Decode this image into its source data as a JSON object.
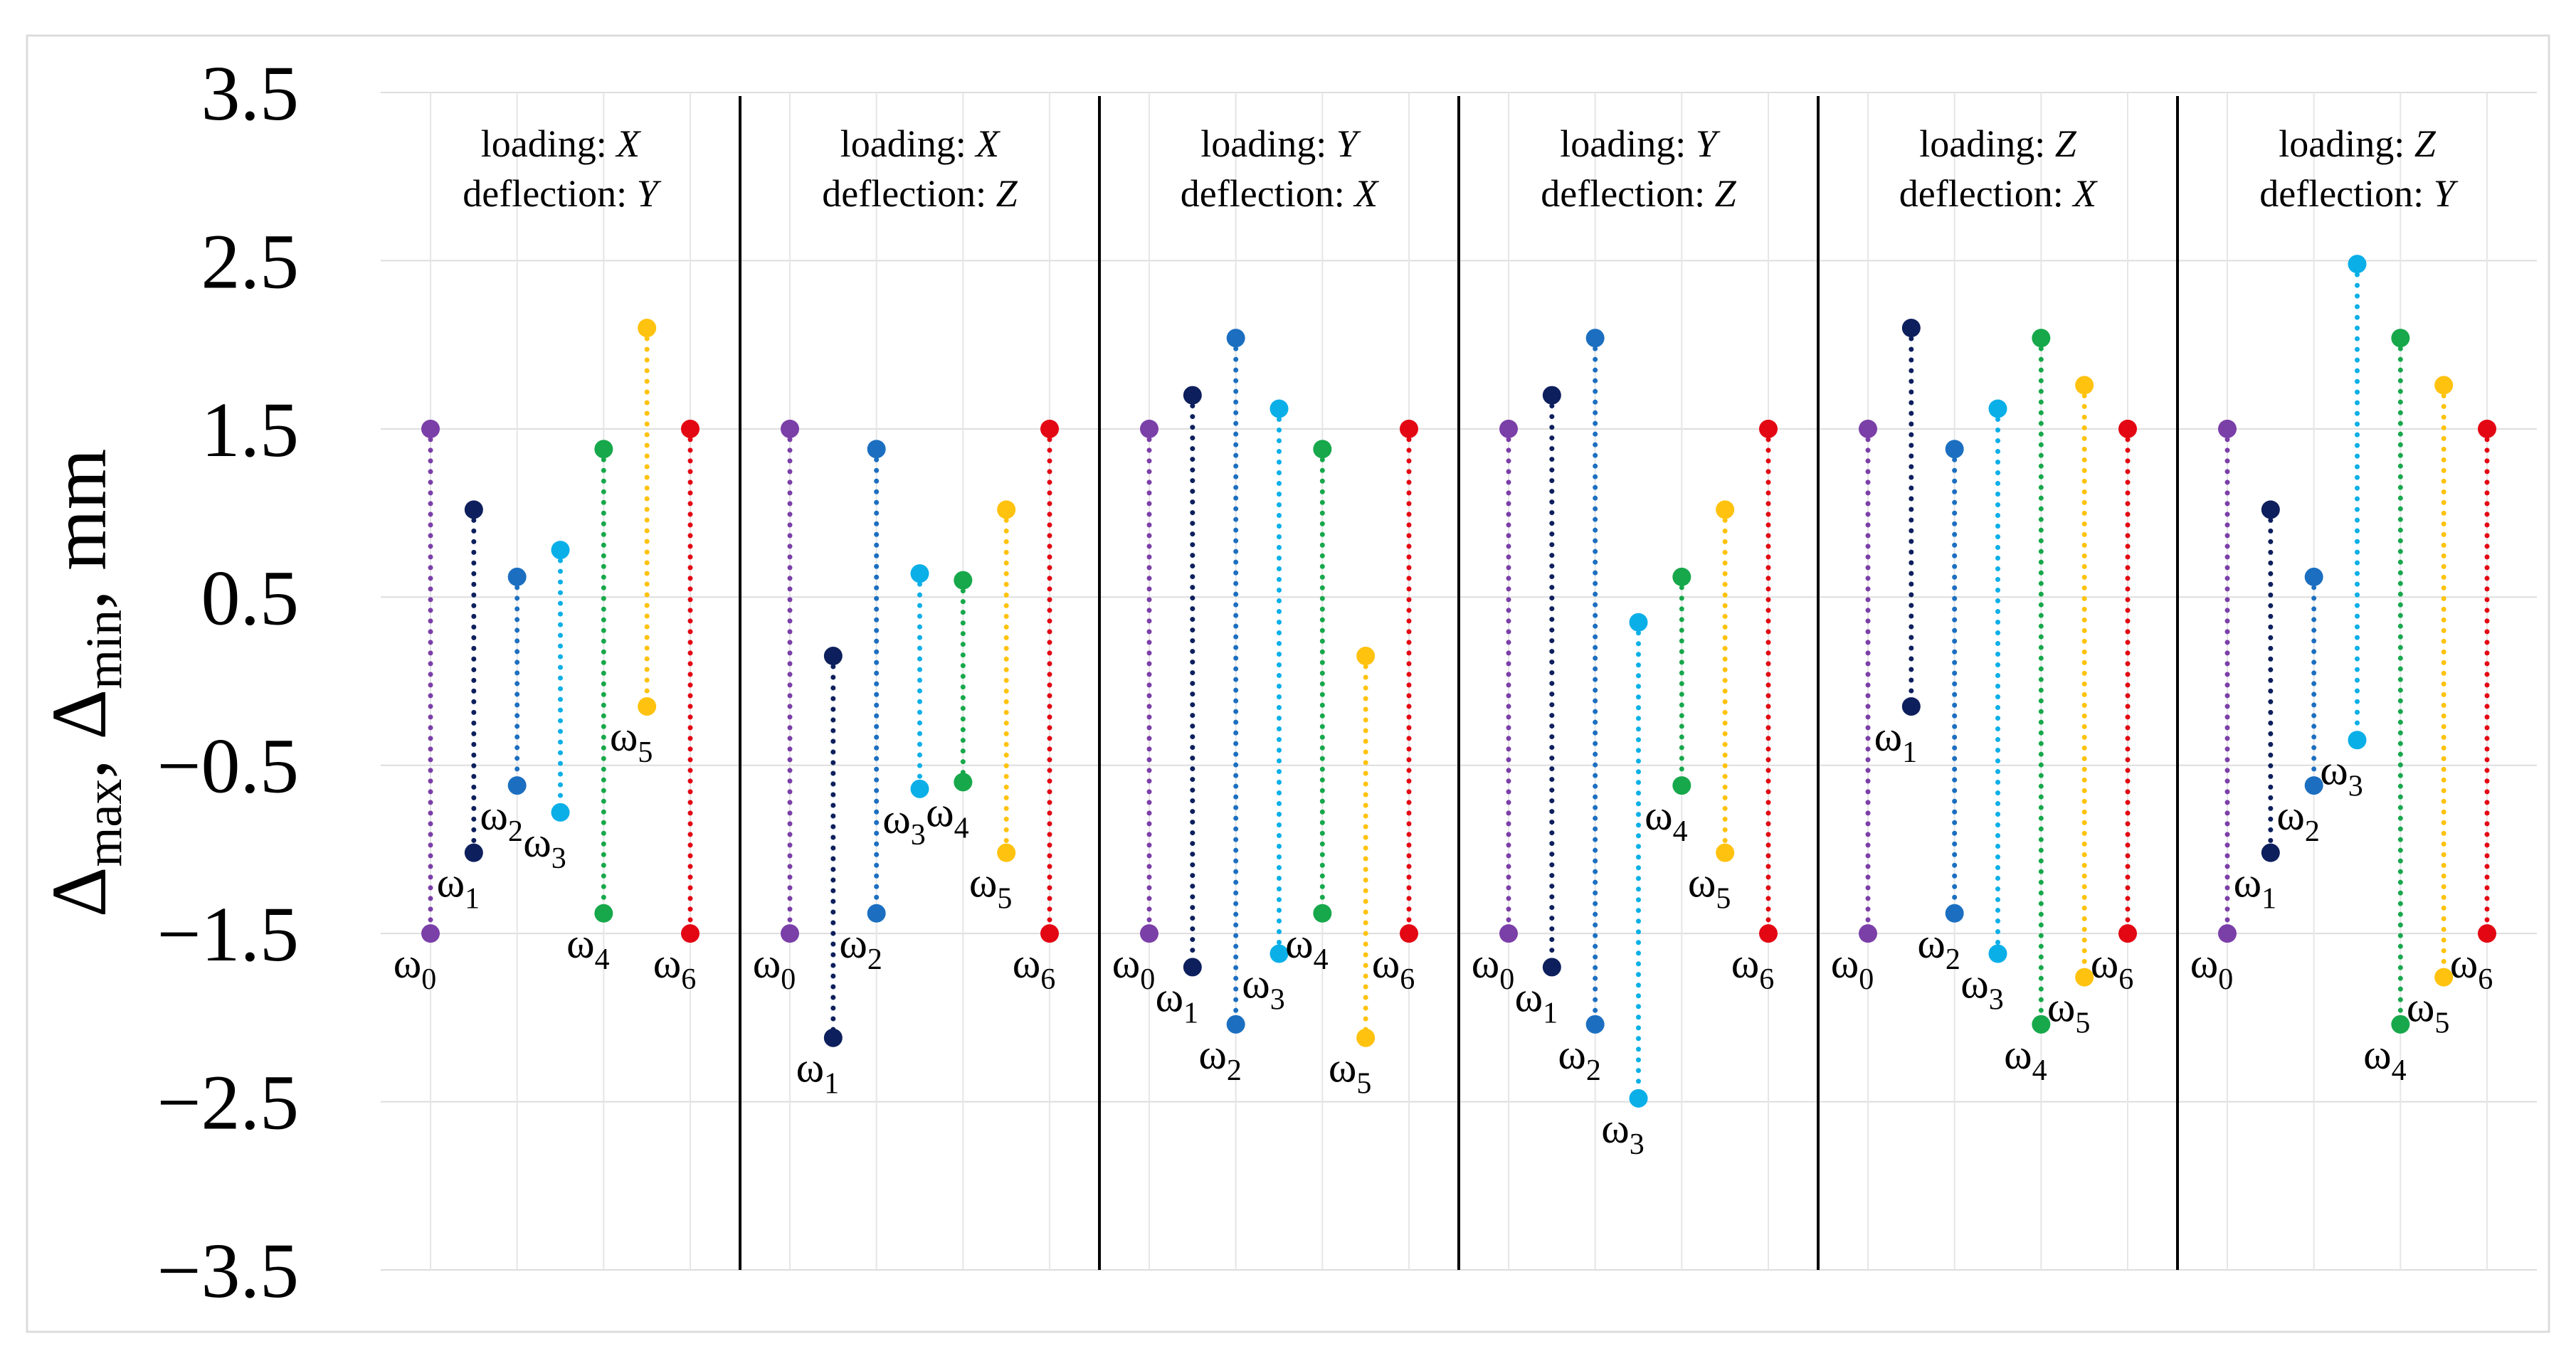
{
  "chart_data": {
    "type": "scatter",
    "description_of_marks": "min-max range per mode",
    "ylabel": {
      "base1": "Δ",
      "sub1": "max",
      "sep": ", ",
      "base2": "Δ",
      "sub2": "min",
      "unit": ", mm"
    },
    "ylim": [
      -3.5,
      3.5
    ],
    "yticks": [
      3.5,
      2.5,
      1.5,
      0.5,
      -0.5,
      -1.5,
      -2.5,
      -3.5
    ],
    "ytick_labels": [
      "3.5",
      "2.5",
      "1.5",
      "0.5",
      "−0.5",
      "−1.5",
      "−2.5",
      "−3.5"
    ],
    "grid": true,
    "series_colors": [
      "#7b3fa8",
      "#0d1f5c",
      "#1c6fc0",
      "#0aafe8",
      "#17a84b",
      "#ffc20e",
      "#e30613"
    ],
    "mode_symbol": "ω",
    "panels": [
      {
        "line1_prefix": "loading: ",
        "line1_axis": "X",
        "line2_prefix": "deflection: ",
        "line2_axis": "Y",
        "modes": [
          {
            "label": "0",
            "max": 1.5,
            "min": -1.5
          },
          {
            "label": "1",
            "max": 1.02,
            "min": -1.02
          },
          {
            "label": "2",
            "max": 0.62,
            "min": -0.62
          },
          {
            "label": "3",
            "max": 0.78,
            "min": -0.78
          },
          {
            "label": "4",
            "max": 1.38,
            "min": -1.38
          },
          {
            "label": "5",
            "max": 2.1,
            "min": -0.15
          },
          {
            "label": "6",
            "max": 1.5,
            "min": -1.5
          }
        ]
      },
      {
        "line1_prefix": "loading: ",
        "line1_axis": "X",
        "line2_prefix": "deflection: ",
        "line2_axis": "Z",
        "modes": [
          {
            "label": "0",
            "max": 1.5,
            "min": -1.5
          },
          {
            "label": "1",
            "max": 0.15,
            "min": -2.12
          },
          {
            "label": "2",
            "max": 1.38,
            "min": -1.38
          },
          {
            "label": "3",
            "max": 0.64,
            "min": -0.64
          },
          {
            "label": "4",
            "max": 0.6,
            "min": -0.6
          },
          {
            "label": "5",
            "max": 1.02,
            "min": -1.02
          },
          {
            "label": "6",
            "max": 1.5,
            "min": -1.5
          }
        ]
      },
      {
        "line1_prefix": "loading: ",
        "line1_axis": "Y",
        "line2_prefix": "deflection: ",
        "line2_axis": "X",
        "modes": [
          {
            "label": "0",
            "max": 1.5,
            "min": -1.5
          },
          {
            "label": "1",
            "max": 1.7,
            "min": -1.7
          },
          {
            "label": "2",
            "max": 2.04,
            "min": -2.04
          },
          {
            "label": "3",
            "max": 1.62,
            "min": -1.62
          },
          {
            "label": "4",
            "max": 1.38,
            "min": -1.38
          },
          {
            "label": "5",
            "max": 0.15,
            "min": -2.12
          },
          {
            "label": "6",
            "max": 1.5,
            "min": -1.5
          }
        ]
      },
      {
        "line1_prefix": "loading: ",
        "line1_axis": "Y",
        "line2_prefix": "deflection: ",
        "line2_axis": "Z",
        "modes": [
          {
            "label": "0",
            "max": 1.5,
            "min": -1.5
          },
          {
            "label": "1",
            "max": 1.7,
            "min": -1.7
          },
          {
            "label": "2",
            "max": 2.04,
            "min": -2.04
          },
          {
            "label": "3",
            "max": 0.35,
            "min": -2.48
          },
          {
            "label": "4",
            "max": 0.62,
            "min": -0.62
          },
          {
            "label": "5",
            "max": 1.02,
            "min": -1.02
          },
          {
            "label": "6",
            "max": 1.5,
            "min": -1.5
          }
        ]
      },
      {
        "line1_prefix": "loading: ",
        "line1_axis": "Z",
        "line2_prefix": "deflection: ",
        "line2_axis": "X",
        "modes": [
          {
            "label": "0",
            "max": 1.5,
            "min": -1.5
          },
          {
            "label": "1",
            "max": 2.1,
            "min": -0.15
          },
          {
            "label": "2",
            "max": 1.38,
            "min": -1.38
          },
          {
            "label": "3",
            "max": 1.62,
            "min": -1.62
          },
          {
            "label": "4",
            "max": 2.04,
            "min": -2.04
          },
          {
            "label": "5",
            "max": 1.76,
            "min": -1.76
          },
          {
            "label": "6",
            "max": 1.5,
            "min": -1.5
          }
        ]
      },
      {
        "line1_prefix": "loading: ",
        "line1_axis": "Z",
        "line2_prefix": "deflection: ",
        "line2_axis": "Y",
        "modes": [
          {
            "label": "0",
            "max": 1.5,
            "min": -1.5
          },
          {
            "label": "1",
            "max": 1.02,
            "min": -1.02
          },
          {
            "label": "2",
            "max": 0.62,
            "min": -0.62
          },
          {
            "label": "3",
            "max": 2.48,
            "min": -0.35
          },
          {
            "label": "4",
            "max": 2.04,
            "min": -2.04
          },
          {
            "label": "5",
            "max": 1.76,
            "min": -1.76
          },
          {
            "label": "6",
            "max": 1.5,
            "min": -1.5
          }
        ]
      }
    ]
  }
}
